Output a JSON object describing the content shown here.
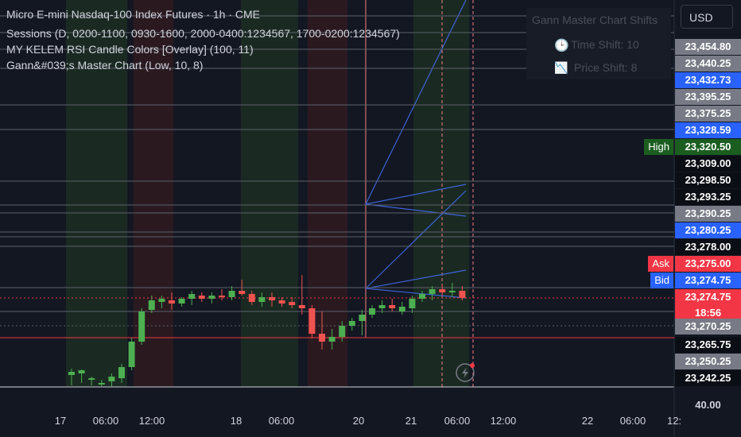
{
  "header": {
    "title": "Micro E-mini Nasdaq-100 Index Futures · 1h · CME",
    "indicators": [
      "Sessions (D, 0200-1100, 0930-1600, 2000-0400:1234567, 1700-0200:1234567)",
      "MY KELEM RSI Candle Colors [Overlay] (100, 11)",
      "Gann&#039;s Master Chart (Low, 10, 8)"
    ]
  },
  "chart": {
    "ylim": [
      23247.25,
      23368.5
    ],
    "current_price": 23274.75,
    "candles": [
      [
        23250.5,
        23252.5,
        23247.25,
        23251.5
      ],
      [
        23251,
        23252.25,
        23248,
        23252
      ],
      [
        23249,
        23250,
        23247.25,
        23249.5
      ],
      [
        23247.5,
        23249,
        23247,
        23248
      ],
      [
        23248.5,
        23251,
        23247,
        23250
      ],
      [
        23249.5,
        23254,
        23248,
        23253
      ],
      [
        23253,
        23262.25,
        23252,
        23261
      ],
      [
        23261,
        23271.5,
        23260,
        23270.5
      ],
      [
        23271,
        23275.5,
        23270,
        23274
      ],
      [
        23273.5,
        23275.5,
        23271.5,
        23274.5
      ],
      [
        23274,
        23276.5,
        23271,
        23273
      ],
      [
        23273,
        23275,
        23272,
        23274.5
      ],
      [
        23274.5,
        23277,
        23272.5,
        23276
      ],
      [
        23275.5,
        23276.5,
        23273.5,
        23274.5
      ],
      [
        23274.5,
        23276.5,
        23273,
        23275.5
      ],
      [
        23275.5,
        23277.5,
        23274,
        23275
      ],
      [
        23275,
        23278.5,
        23274,
        23277
      ],
      [
        23277,
        23280.5,
        23275.5,
        23276
      ],
      [
        23276,
        23277,
        23272.5,
        23273.5
      ],
      [
        23273.5,
        23276.5,
        23272,
        23275
      ],
      [
        23275,
        23276.5,
        23272,
        23274
      ],
      [
        23274,
        23275,
        23272,
        23273
      ],
      [
        23273.5,
        23275,
        23271.5,
        23272.5
      ],
      [
        23272.5,
        23282,
        23269.5,
        23271.5
      ],
      [
        23271.5,
        23272.5,
        23262,
        23263.5
      ],
      [
        23263.5,
        23270.5,
        23258.5,
        23261
      ],
      [
        23261,
        23265,
        23258.5,
        23262.5
      ],
      [
        23262.5,
        23267.5,
        23261,
        23266
      ],
      [
        23266,
        23268.5,
        23264.5,
        23267.5
      ],
      [
        23267.5,
        23271,
        23263,
        23269.5
      ],
      [
        23269.5,
        23272.5,
        23268.5,
        23271.5
      ],
      [
        23271.5,
        23274,
        23270,
        23272.5
      ],
      [
        23272.5,
        23274.5,
        23270.5,
        23271.5
      ],
      [
        23270.5,
        23273.5,
        23269.5,
        23272
      ],
      [
        23271.5,
        23275.5,
        23270,
        23274.5
      ],
      [
        23274.5,
        23277,
        23273.5,
        23276
      ],
      [
        23276,
        23278.5,
        23274,
        23277.5
      ],
      [
        23277.5,
        23279,
        23275.5,
        23276.5
      ],
      [
        23276.5,
        23279.5,
        23275,
        23277
      ],
      [
        23277,
        23278.5,
        23274,
        23274.75
      ]
    ],
    "levels": [
      23363.5,
      23358.25,
      23353,
      23347,
      23335.5,
      23327.75,
      23311.5,
      23304,
      23301.5,
      23295.5,
      23294,
      23291,
      23278,
      23270.5,
      23266,
      23262.25
    ]
  },
  "currency": "USD",
  "price_axis": [
    {
      "text": "23,454.80",
      "style": "gray"
    },
    {
      "text": "23,440.25",
      "style": "gray"
    },
    {
      "text": "23,432.73",
      "style": "blue"
    },
    {
      "text": "23,395.25",
      "style": "gray"
    },
    {
      "text": "23,375.25",
      "style": "gray"
    },
    {
      "text": "23,328.59",
      "style": "blue"
    },
    {
      "text": "23,320.50",
      "style": "green",
      "tag": "High"
    },
    {
      "text": "23,309.00",
      "style": "black"
    },
    {
      "text": "23,298.50",
      "style": "black"
    },
    {
      "text": "23,293.25",
      "style": "black"
    },
    {
      "text": "23,290.25",
      "style": "gray"
    },
    {
      "text": "23,280.25",
      "style": "blue"
    },
    {
      "text": "23,278.00",
      "style": "black"
    },
    {
      "text": "23,275.00",
      "style": "red",
      "tag": "Ask"
    },
    {
      "text": "23,274.75",
      "style": "blue",
      "tag": "Bid"
    },
    {
      "text": "23,274.75",
      "style": "red",
      "sub": "18:56"
    },
    {
      "text": "23,270.25",
      "style": "gray"
    },
    {
      "text": "23,265.75",
      "style": "black"
    },
    {
      "text": "23,250.25",
      "style": "gray"
    },
    {
      "text": "23,242.25",
      "style": "black"
    },
    {
      "text": "40.00",
      "style": "plain"
    }
  ],
  "time_axis": [
    "17",
    "06:00",
    "12:00",
    "18",
    "06:00",
    "20",
    "21",
    "06:00",
    "12:00",
    "22",
    "06:00",
    "12:"
  ],
  "panel": {
    "title": "Gann Master Chart Shifts",
    "time_shift": "Time Shift: 10",
    "price_shift": "Price Shift: 8"
  }
}
